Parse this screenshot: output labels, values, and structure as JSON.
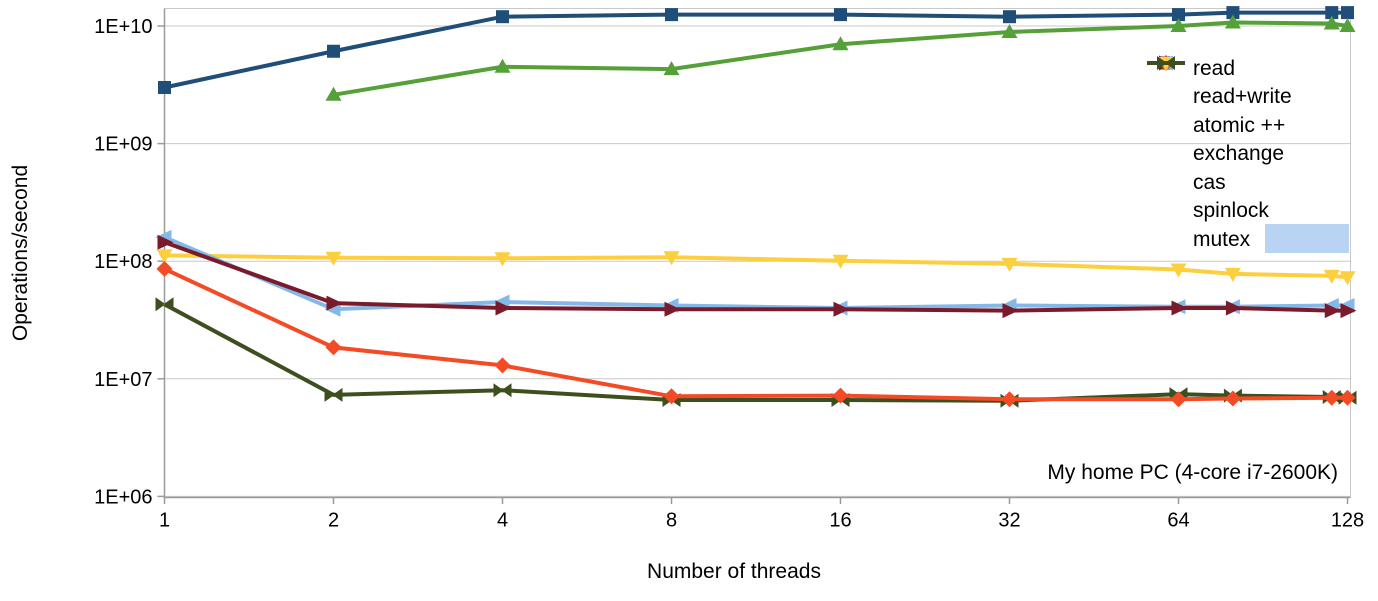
{
  "chart_data": {
    "type": "line",
    "x_scale": "log2",
    "y_scale": "log10",
    "title": "",
    "xlabel": "Number of threads",
    "ylabel": "Operations/second",
    "annotation": "My home PC (4-core i7-2600K)",
    "x": [
      1,
      2,
      4,
      8,
      16,
      32,
      64,
      80,
      120,
      128
    ],
    "x_tick_values": [
      1,
      2,
      4,
      8,
      16,
      32,
      64,
      128
    ],
    "x_tick_labels": [
      "1",
      "2",
      "4",
      "8",
      "16",
      "32",
      "64",
      "128"
    ],
    "y_tick_values": [
      10000000000.0,
      1000000000.0,
      100000000.0,
      10000000.0,
      1000000.0
    ],
    "y_tick_labels": [
      "1E+10",
      "1E+09",
      "1E+08",
      "1E+07",
      "1E+06"
    ],
    "ylim": [
      1000000,
      14000000000
    ],
    "grid": true,
    "legend_position": "inside-top-right",
    "series": [
      {
        "name": "read",
        "color": "#1f4e79",
        "marker": "square",
        "values": [
          3000000000.0,
          6100000000.0,
          12000000000.0,
          12500000000.0,
          12500000000.0,
          12000000000.0,
          12500000000.0,
          13000000000.0,
          13000000000.0,
          13000000000.0
        ]
      },
      {
        "name": "read+write",
        "color": "#55a038",
        "marker": "triangle-up",
        "values": [
          null,
          2600000000.0,
          4500000000.0,
          4300000000.0,
          7000000000.0,
          8900000000.0,
          10000000000.0,
          10700000000.0,
          10500000000.0,
          10000000000.0
        ]
      },
      {
        "name": "atomic ++",
        "color": "#7a1b2c",
        "marker": "triangle-right",
        "values": [
          145000000.0,
          44000000.0,
          40000000.0,
          39000000.0,
          39000000.0,
          38000000.0,
          40000000.0,
          40000000.0,
          38000000.0,
          38000000.0
        ]
      },
      {
        "name": "exchange",
        "color": "#84b8e8",
        "marker": "triangle-left",
        "values": [
          160000000.0,
          39000000.0,
          45000000.0,
          42000000.0,
          40000000.0,
          42000000.0,
          41000000.0,
          41000000.0,
          42000000.0,
          42000000.0
        ]
      },
      {
        "name": "cas",
        "color": "#f24b26",
        "marker": "diamond",
        "values": [
          86000000.0,
          18500000.0,
          13000000.0,
          7100000.0,
          7200000.0,
          6700000.0,
          6700000.0,
          6800000.0,
          6900000.0,
          6900000.0
        ]
      },
      {
        "name": "spinlock",
        "color": "#fccf3f",
        "marker": "triangle-down",
        "values": [
          112000000.0,
          107000000.0,
          106000000.0,
          108000000.0,
          101000000.0,
          95000000.0,
          85000000.0,
          78000000.0,
          75000000.0,
          73000000.0
        ]
      },
      {
        "name": "mutex",
        "color": "#3d4f1f",
        "marker": "bowtie",
        "values": [
          43000000.0,
          7300000.0,
          8000000.0,
          6600000.0,
          6600000.0,
          6500000.0,
          7400000.0,
          7200000.0,
          7000000.0,
          6900000.0
        ]
      }
    ],
    "draw_order": [
      0,
      1,
      5,
      3,
      2,
      6,
      4
    ]
  },
  "colors": {
    "gridline": "#c9c9c9",
    "axis": "#9a9a9a",
    "selection_highlight": "#b9d3f2"
  }
}
